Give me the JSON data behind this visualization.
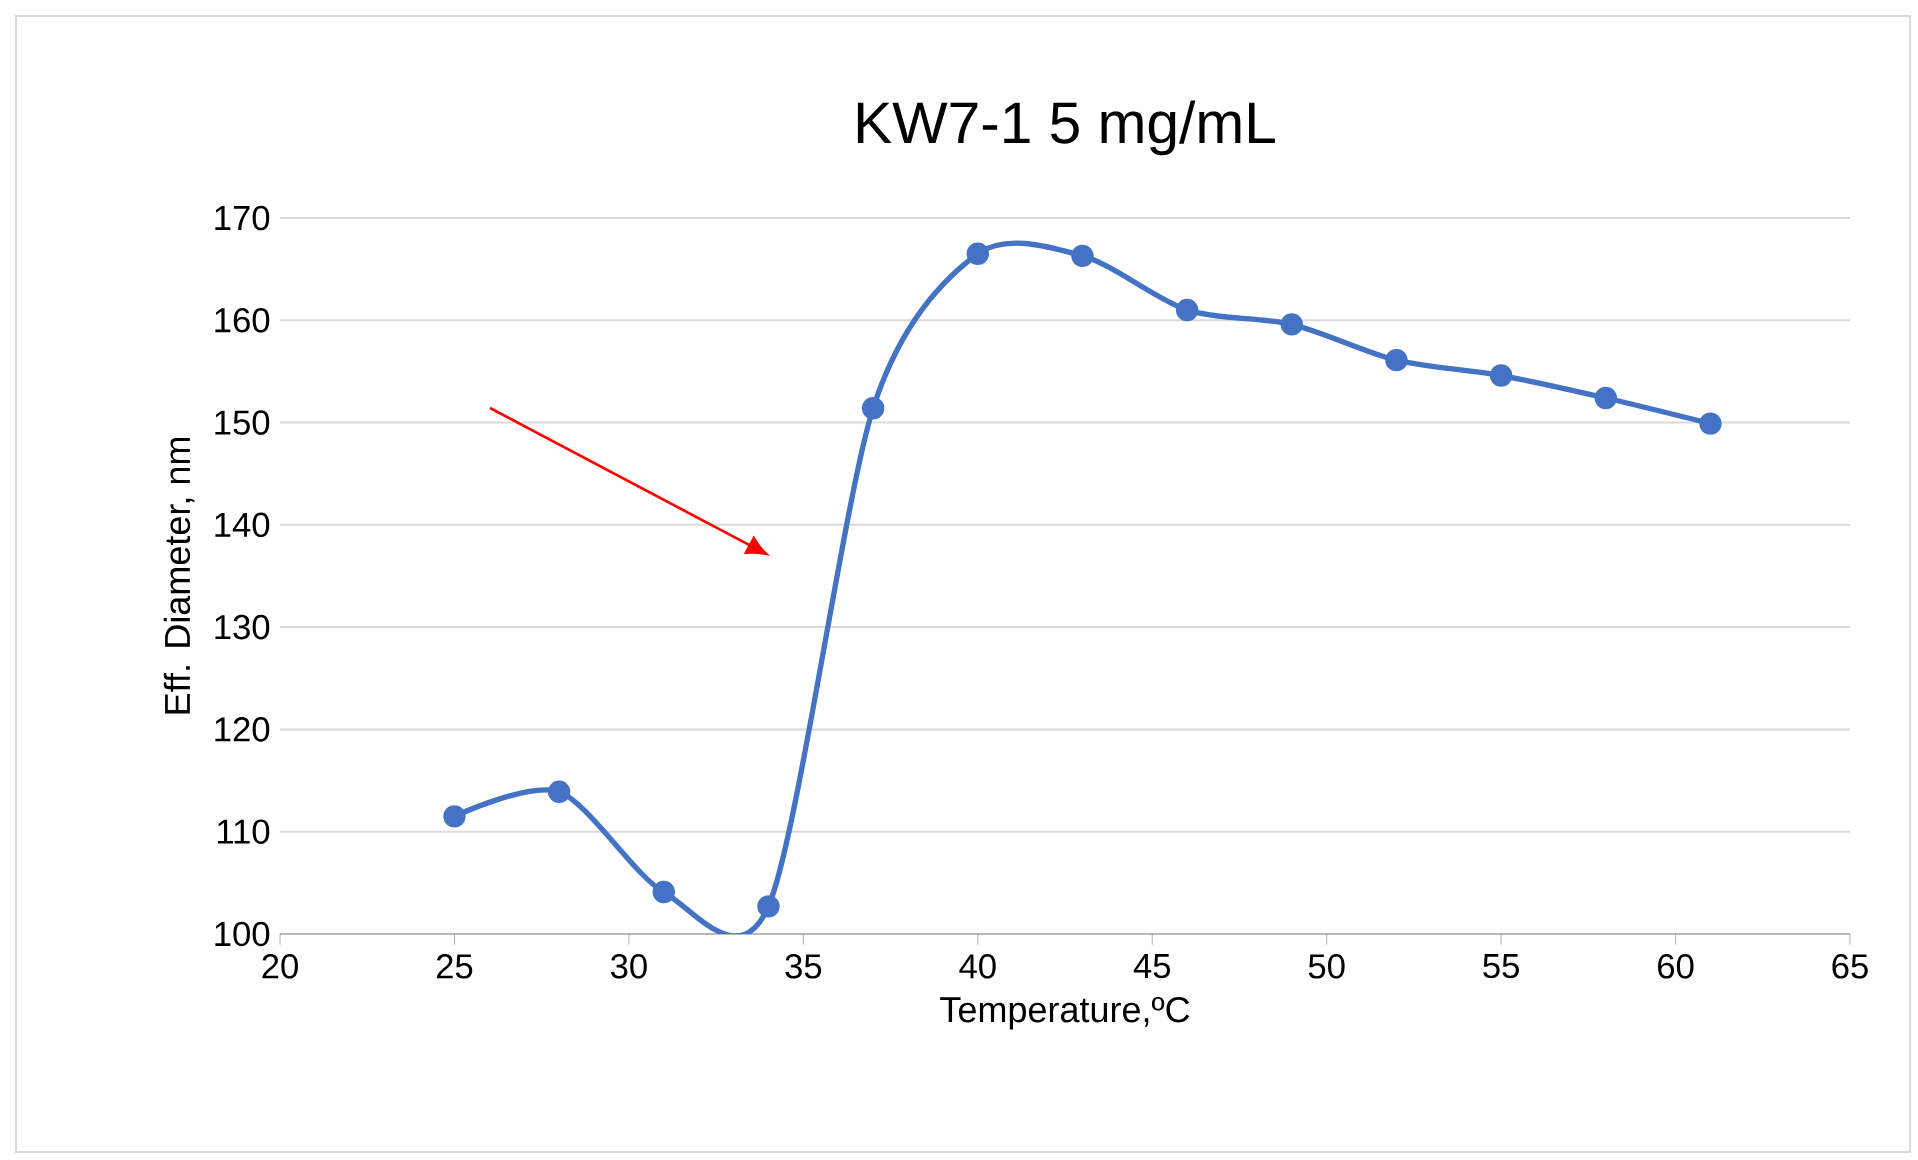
{
  "chart_data": {
    "type": "line",
    "title": "KW7-1 5 mg/mL",
    "xlabel": "Temperature,ºC",
    "ylabel": "Eff. Diameter, nm",
    "x": [
      25,
      28,
      31,
      34,
      37,
      40,
      43,
      46,
      49,
      52,
      55,
      58,
      61
    ],
    "series": [
      {
        "color": "#4472c4",
        "values": [
          111.5,
          113.9,
          104.1,
          102.7,
          151.4,
          166.5,
          166.3,
          161,
          159.6,
          156.1,
          154.6,
          152.4,
          149.9
        ]
      }
    ],
    "xlim": [
      20,
      65
    ],
    "xticks": [
      20,
      25,
      30,
      35,
      40,
      45,
      50,
      55,
      60,
      65
    ],
    "ylim": [
      100,
      170
    ],
    "yticks": [
      100,
      110,
      120,
      130,
      140,
      150,
      160,
      170
    ],
    "grid": "y",
    "marker": "circle",
    "line_style": "solid"
  }
}
